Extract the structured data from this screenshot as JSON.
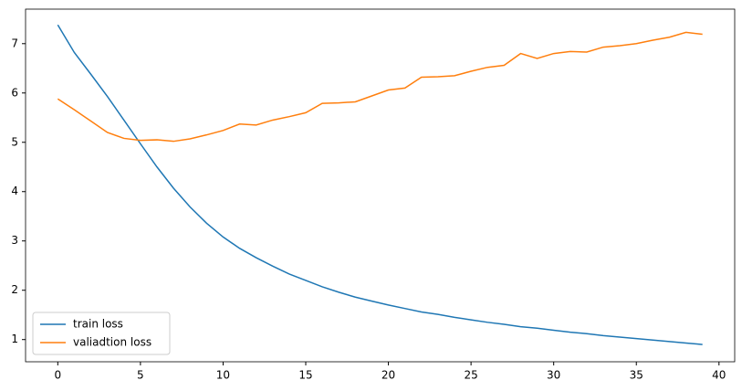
{
  "chart_data": {
    "type": "line",
    "x": [
      0,
      1,
      2,
      3,
      4,
      5,
      6,
      7,
      8,
      9,
      10,
      11,
      12,
      13,
      14,
      15,
      16,
      17,
      18,
      19,
      20,
      21,
      22,
      23,
      24,
      25,
      26,
      27,
      28,
      29,
      30,
      31,
      32,
      33,
      34,
      35,
      36,
      37,
      38,
      39
    ],
    "series": [
      {
        "name": "train loss",
        "color": "#1f77b4",
        "values": [
          7.38,
          6.82,
          6.38,
          5.93,
          5.45,
          4.97,
          4.5,
          4.07,
          3.69,
          3.36,
          3.08,
          2.85,
          2.66,
          2.49,
          2.33,
          2.2,
          2.07,
          1.96,
          1.86,
          1.78,
          1.7,
          1.63,
          1.56,
          1.51,
          1.45,
          1.4,
          1.35,
          1.31,
          1.26,
          1.23,
          1.19,
          1.15,
          1.12,
          1.08,
          1.05,
          1.02,
          0.99,
          0.96,
          0.93,
          0.9
        ]
      },
      {
        "name": "valiadtion loss",
        "color": "#ff7f0e",
        "values": [
          5.88,
          5.66,
          5.43,
          5.2,
          5.08,
          5.04,
          5.05,
          5.02,
          5.07,
          5.15,
          5.24,
          5.37,
          5.35,
          5.45,
          5.52,
          5.6,
          5.79,
          5.8,
          5.82,
          5.94,
          6.06,
          6.1,
          6.32,
          6.33,
          6.35,
          6.44,
          6.52,
          6.56,
          6.8,
          6.7,
          6.8,
          6.84,
          6.83,
          6.93,
          6.96,
          7.0,
          7.07,
          7.13,
          7.23,
          7.19
        ]
      }
    ],
    "xlim": [
      -1.95,
      40.95
    ],
    "ylim": [
      0.55,
      7.7
    ],
    "xticks": [
      0,
      5,
      10,
      15,
      20,
      25,
      30,
      35,
      40
    ],
    "yticks": [
      1,
      2,
      3,
      4,
      5,
      6,
      7
    ],
    "legend": "lower left"
  }
}
